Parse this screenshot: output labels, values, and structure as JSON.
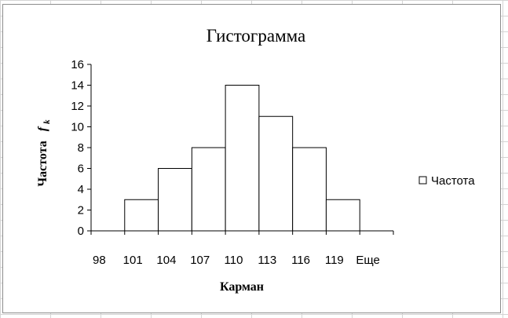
{
  "sheet": {
    "gridline_color": "#d4d4d4"
  },
  "chart_data": {
    "type": "bar",
    "title": "Гистограмма",
    "xlabel": "Карман",
    "ylabel": "Частота",
    "ylabel_symbol": "f",
    "ylabel_subscript": "k",
    "categories": [
      "98",
      "101",
      "104",
      "107",
      "110",
      "113",
      "116",
      "119",
      "Еще"
    ],
    "series": [
      {
        "name": "Частота",
        "values": [
          0,
          3,
          6,
          8,
          14,
          11,
          8,
          3,
          0
        ]
      }
    ],
    "ylim": [
      0,
      16
    ],
    "yticks": [
      "0",
      "2",
      "4",
      "6",
      "8",
      "10",
      "12",
      "14",
      "16"
    ],
    "bar_fill": "#ffffff",
    "bar_stroke": "#000000",
    "grid": false,
    "legend_position": "right"
  }
}
